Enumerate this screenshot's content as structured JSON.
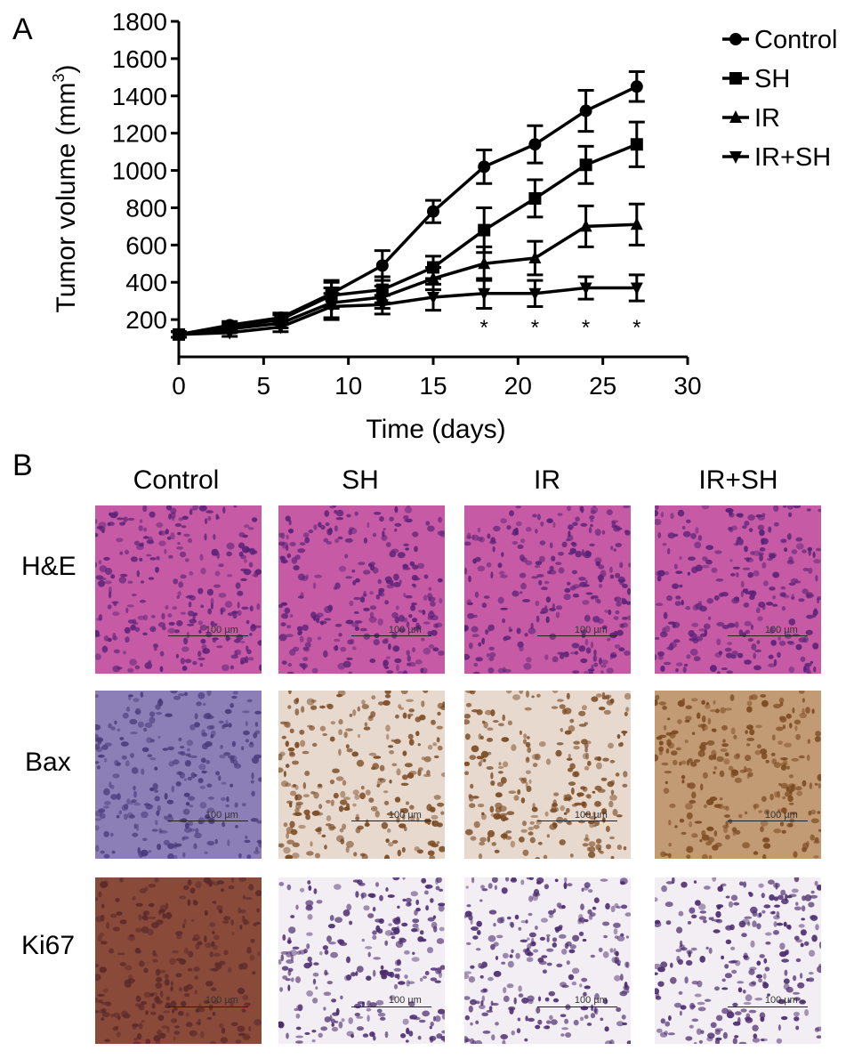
{
  "panel_a_letter": "A",
  "panel_b_letter": "B",
  "chart_data": {
    "type": "line",
    "title": "",
    "xlabel": "Time (days)",
    "ylabel_main": "Tumor volume (mm",
    "ylabel_sup": "3",
    "ylabel_close": ")",
    "xlim": [
      0,
      30
    ],
    "ylim": [
      0,
      1800
    ],
    "xticks": [
      0,
      5,
      10,
      15,
      20,
      25,
      30
    ],
    "yticks": [
      200,
      400,
      600,
      800,
      1000,
      1200,
      1400,
      1600,
      1800
    ],
    "grid": false,
    "legend_position": "top-right",
    "x": [
      0,
      3,
      6,
      9,
      12,
      15,
      18,
      21,
      24,
      27
    ],
    "series": [
      {
        "name": "Control",
        "marker": "circle",
        "values": [
          120,
          170,
          210,
          340,
          490,
          780,
          1020,
          1140,
          1320,
          1450
        ],
        "errors": [
          15,
          20,
          25,
          70,
          80,
          60,
          90,
          100,
          110,
          80
        ]
      },
      {
        "name": "SH",
        "marker": "square",
        "values": [
          120,
          160,
          200,
          330,
          360,
          480,
          680,
          850,
          1030,
          1140
        ],
        "errors": [
          15,
          20,
          25,
          70,
          70,
          60,
          120,
          100,
          100,
          120
        ]
      },
      {
        "name": "IR",
        "marker": "triangle-up",
        "values": [
          120,
          150,
          180,
          290,
          320,
          420,
          500,
          530,
          700,
          710
        ],
        "errors": [
          15,
          20,
          25,
          80,
          60,
          60,
          90,
          90,
          110,
          110
        ]
      },
      {
        "name": "IR+SH",
        "marker": "triangle-down",
        "values": [
          120,
          130,
          160,
          270,
          280,
          320,
          340,
          340,
          370,
          370
        ],
        "errors": [
          15,
          20,
          25,
          70,
          50,
          70,
          80,
          70,
          60,
          70
        ]
      }
    ],
    "annotations": [
      {
        "x": 18,
        "text": "*"
      },
      {
        "x": 21,
        "text": "*"
      },
      {
        "x": 24,
        "text": "*"
      },
      {
        "x": 27,
        "text": "*"
      }
    ]
  },
  "micrographs": {
    "columns": [
      "Control",
      "SH",
      "IR",
      "IR+SH"
    ],
    "rows": [
      "H&E",
      "Bax",
      "Ki67"
    ],
    "scale_label": "100 µm"
  },
  "colors": {
    "he_background": "#c65aa4",
    "he_nuclei": "#5a2378",
    "bax_control_background": "#8c7fb8",
    "bax_background": "#e8d9cf",
    "bax_stain": "#7a4a22",
    "bax_ir_sh_background": "#c29a73",
    "ki67_control_background": "#8a4a3a",
    "ki67_background": "#f3eef4",
    "ki67_nuclei": "#4b2c6e"
  }
}
